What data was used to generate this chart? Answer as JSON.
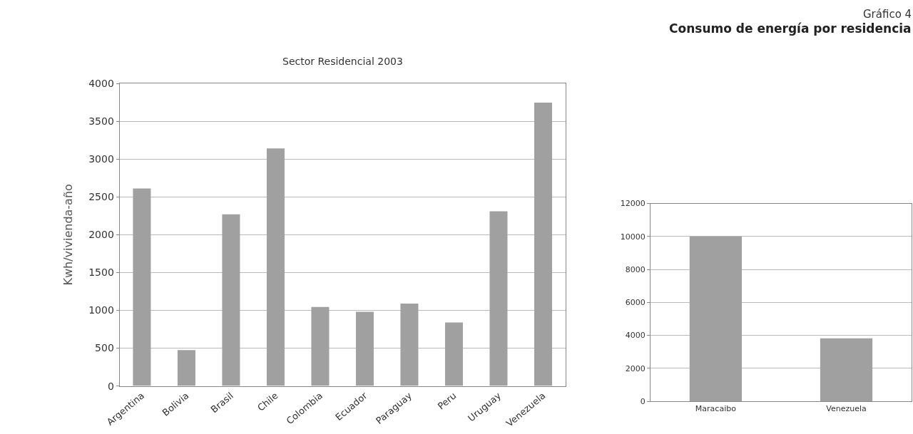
{
  "chart_data": [
    {
      "type": "bar",
      "title": "Sector Residencial 2003",
      "ylabel": "Kwh/vivienda-año",
      "categories": [
        "Argentina",
        "Bolivia",
        "Brasil",
        "Chile",
        "Colombia",
        "Ecuador",
        "Paraguay",
        "Peru",
        "Uruguay",
        "Venezuela"
      ],
      "values": [
        2610,
        475,
        2270,
        3140,
        1045,
        980,
        1090,
        840,
        2310,
        3745
      ],
      "color": "#a0a0a0",
      "ylim": [
        0,
        4000
      ],
      "yticks": [
        0,
        500,
        1000,
        1500,
        2000,
        2500,
        3000,
        3500,
        4000
      ],
      "grid": "y"
    },
    {
      "type": "bar",
      "title": "Gráfico 4",
      "subtitle": "Consumo de energía por residencia",
      "categories": [
        "Maracaibo",
        "Venezuela"
      ],
      "values": [
        10000,
        3820
      ],
      "color": "#a0a0a0",
      "ylim": [
        0,
        12000
      ],
      "yticks": [
        0,
        2000,
        4000,
        6000,
        8000,
        10000,
        12000
      ],
      "grid": "y"
    }
  ]
}
